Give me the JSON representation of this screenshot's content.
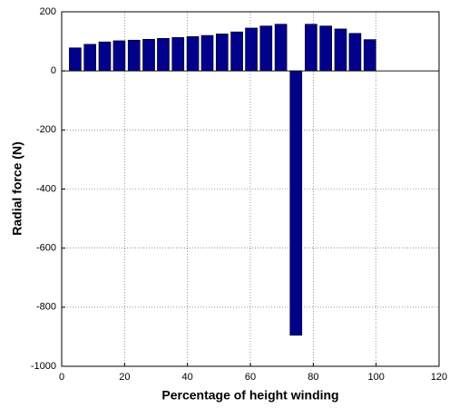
{
  "chart_data": {
    "type": "bar",
    "x_label": "Percentage of height winding",
    "y_label": "Radial force (N)",
    "x": [
      4.3,
      9,
      13.7,
      18.3,
      23,
      27.7,
      32.3,
      37,
      41.7,
      46.3,
      51,
      55.7,
      60.3,
      65,
      69.7,
      74.5,
      79.3,
      84,
      88.7,
      93.3,
      98
    ],
    "values": [
      78,
      90,
      98,
      102,
      104,
      107,
      110,
      113,
      116,
      120,
      125,
      132,
      145,
      152,
      158,
      -895,
      158,
      152,
      142,
      127,
      106
    ],
    "color": "#00008b",
    "xlim": [
      0,
      120
    ],
    "xticks": [
      0,
      20,
      40,
      60,
      80,
      100,
      120
    ],
    "ylim": [
      -1000,
      200
    ],
    "yticks": [
      -1000,
      -800,
      -600,
      -400,
      -200,
      0,
      200
    ],
    "grid": true
  }
}
